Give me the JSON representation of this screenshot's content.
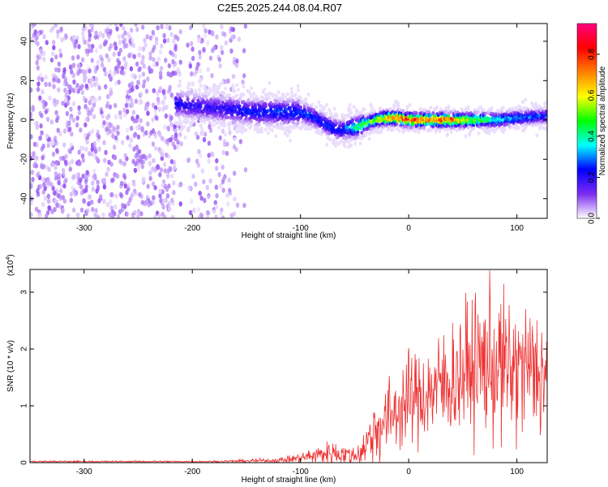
{
  "title": "C2E5.2025.244.08.04.R07",
  "chart_data": [
    {
      "type": "heatmap",
      "xlabel": "Height of straight line (km)",
      "ylabel": "Frequency (Hz)",
      "xlim": [
        -350,
        128
      ],
      "ylim": [
        -50,
        49
      ],
      "xticks": [
        "-300",
        "-200",
        "-100",
        "0",
        "100"
      ],
      "xtick_values": [
        -300,
        -200,
        -100,
        0,
        100
      ],
      "yticks": [
        "-40",
        "-20",
        "0",
        "20",
        "40"
      ],
      "ytick_values": [
        -40,
        -20,
        0,
        20,
        40
      ],
      "colorbar": {
        "label": "Normalized spectral amplitude",
        "range": [
          0,
          0.95
        ],
        "ticks": [
          "0.0",
          "0.2",
          "0.4",
          "0.6",
          "0.8"
        ],
        "tick_values": [
          0.0,
          0.2,
          0.4,
          0.6,
          0.8
        ],
        "colormap": [
          "#ffffff",
          "#7d2bf0",
          "#0000ff",
          "#00ffff",
          "#00ff00",
          "#ffff00",
          "#ff8000",
          "#ff0000",
          "#ff0080"
        ]
      },
      "ridge": {
        "x": [
          -215,
          -200,
          -180,
          -160,
          -140,
          -120,
          -100,
          -90,
          -80,
          -70,
          -65,
          -60,
          -55,
          -50,
          -40,
          -30,
          -20,
          -10,
          0,
          20,
          40,
          60,
          80,
          100,
          128
        ],
        "frequency": [
          8,
          7,
          6,
          5,
          4,
          4,
          4,
          2,
          -1,
          -4,
          -5,
          -5,
          -4,
          -4,
          -2,
          0,
          1,
          1,
          0,
          0,
          0,
          0,
          0,
          1,
          2
        ],
        "peak_amplitude": [
          0.25,
          0.22,
          0.22,
          0.25,
          0.28,
          0.3,
          0.3,
          0.3,
          0.28,
          0.3,
          0.25,
          0.3,
          0.35,
          0.5,
          0.55,
          0.6,
          0.8,
          0.9,
          0.9,
          0.85,
          0.85,
          0.6,
          0.45,
          0.35,
          0.3
        ]
      },
      "noise_region_x": [
        -350,
        -150
      ]
    },
    {
      "type": "line",
      "xlabel": "Height of straight line (km)",
      "ylabel": "SNR (10 * v/v)",
      "scale_label": "(x10",
      "scale_exponent": "4",
      "xlim": [
        -350,
        128
      ],
      "ylim": [
        0,
        3.4
      ],
      "xticks": [
        "-300",
        "-200",
        "-100",
        "0",
        "100"
      ],
      "xtick_values": [
        -300,
        -200,
        -100,
        0,
        100
      ],
      "yticks": [
        "0",
        "1",
        "2",
        "3"
      ],
      "ytick_values": [
        0,
        1,
        2,
        3
      ],
      "series": [
        {
          "name": "SNR",
          "color": "#ee3333",
          "x": [
            -350,
            -300,
            -250,
            -200,
            -180,
            -150,
            -120,
            -100,
            -90,
            -80,
            -70,
            -60,
            -50,
            -45,
            -40,
            -35,
            -30,
            -20,
            -10,
            0,
            10,
            20,
            30,
            40,
            50,
            60,
            70,
            80,
            90,
            100,
            110,
            120,
            128
          ],
          "mean": [
            0.02,
            0.02,
            0.02,
            0.02,
            0.02,
            0.03,
            0.04,
            0.08,
            0.12,
            0.15,
            0.18,
            0.15,
            0.12,
            0.18,
            0.3,
            0.45,
            0.6,
            0.75,
            0.95,
            1.1,
            1.15,
            1.25,
            1.35,
            1.45,
            1.6,
            1.7,
            1.75,
            1.7,
            1.65,
            1.6,
            1.65,
            1.6,
            1.55
          ],
          "spread": [
            0.01,
            0.01,
            0.01,
            0.01,
            0.01,
            0.02,
            0.03,
            0.06,
            0.1,
            0.12,
            0.15,
            0.12,
            0.1,
            0.15,
            0.25,
            0.4,
            0.45,
            0.45,
            0.5,
            0.55,
            0.55,
            0.6,
            0.65,
            0.7,
            0.75,
            0.8,
            0.85,
            0.9,
            0.85,
            0.85,
            0.8,
            0.8,
            0.8
          ],
          "max": 3.4
        }
      ]
    }
  ]
}
